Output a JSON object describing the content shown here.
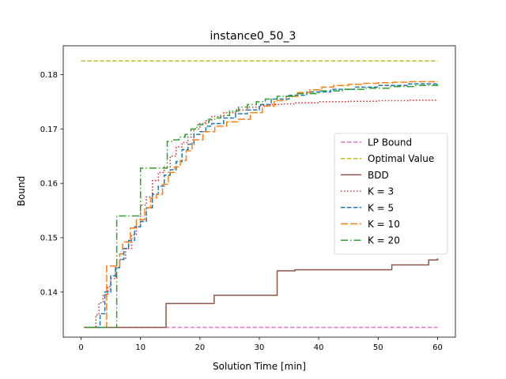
{
  "chart_data": {
    "type": "line",
    "title": "instance0_50_3",
    "xlabel": "Solution Time [min]",
    "ylabel": "Bound",
    "xlim": [
      -3,
      63
    ],
    "ylim": [
      0.1317,
      0.1853
    ],
    "xticks": [
      0,
      10,
      20,
      30,
      40,
      50,
      60
    ],
    "yticks": [
      0.14,
      0.15,
      0.16,
      0.17,
      0.18
    ],
    "xtick_labels": [
      "0",
      "10",
      "20",
      "30",
      "40",
      "50",
      "60"
    ],
    "ytick_labels": [
      "0.14",
      "0.15",
      "0.16",
      "0.17",
      "0.18"
    ],
    "grid": false,
    "legend_position": "center-right",
    "series": [
      {
        "name": "LP Bound",
        "color": "#e377c2",
        "dash": "dashed",
        "step": false,
        "x": [
          0.5,
          60
        ],
        "y": [
          0.1335,
          0.1335
        ]
      },
      {
        "name": "Optimal Value",
        "color": "#bcbd22",
        "dash": "dashed",
        "step": false,
        "x": [
          0,
          60
        ],
        "y": [
          0.1825,
          0.1825
        ]
      },
      {
        "name": "BDD",
        "color": "#8c564b",
        "dash": "solid",
        "step": true,
        "x": [
          0.5,
          14.3,
          22.4,
          33.0,
          36.0,
          52.3,
          58.5,
          60
        ],
        "y": [
          0.1335,
          0.1379,
          0.1394,
          0.1439,
          0.1441,
          0.145,
          0.1459,
          0.1462
        ]
      },
      {
        "name": "K = 3",
        "color": "#d62728",
        "dash": "dotted",
        "step": true,
        "x": [
          1.5,
          2.5,
          3.0,
          3.7,
          4.5,
          5.0,
          5.8,
          6.5,
          7.5,
          8.5,
          9.3,
          10.0,
          11.0,
          12.0,
          13.0,
          14.0,
          15.0,
          16.0,
          17.0,
          18.0,
          19.0,
          20.0,
          21.0,
          22.0,
          24.0,
          26.0,
          28.0,
          30.0,
          32.0,
          34.0,
          36.0,
          40.0,
          45.0,
          50.0,
          55.0,
          60.0
        ],
        "y": [
          0.1335,
          0.1358,
          0.138,
          0.1395,
          0.141,
          0.1425,
          0.1445,
          0.146,
          0.148,
          0.1505,
          0.152,
          0.156,
          0.1575,
          0.1605,
          0.162,
          0.163,
          0.165,
          0.1667,
          0.1675,
          0.1685,
          0.17,
          0.171,
          0.1715,
          0.1723,
          0.173,
          0.1735,
          0.174,
          0.1743,
          0.1745,
          0.1746,
          0.1748,
          0.175,
          0.1751,
          0.1752,
          0.1753,
          0.1753
        ]
      },
      {
        "name": "K = 5",
        "color": "#1f77b4",
        "dash": "dashed",
        "step": true,
        "x": [
          2.5,
          3.2,
          4.0,
          5.0,
          5.8,
          6.5,
          7.2,
          8.0,
          9.0,
          10.0,
          11.0,
          12.0,
          13.0,
          14.0,
          15.0,
          16.0,
          17.0,
          18.0,
          19.0,
          20.0,
          21.0,
          22.0,
          24.0,
          26.0,
          28.0,
          30.0,
          32.0,
          35.0,
          38.0,
          42.0,
          46.0,
          50.0,
          55.0,
          60.0
        ],
        "y": [
          0.1335,
          0.136,
          0.14,
          0.143,
          0.1445,
          0.146,
          0.148,
          0.1495,
          0.152,
          0.153,
          0.1555,
          0.158,
          0.1595,
          0.1615,
          0.1625,
          0.164,
          0.1662,
          0.1672,
          0.169,
          0.1695,
          0.1705,
          0.171,
          0.172,
          0.1728,
          0.1735,
          0.1745,
          0.1755,
          0.1762,
          0.1768,
          0.1773,
          0.1777,
          0.178,
          0.1783,
          0.1785
        ]
      },
      {
        "name": "K = 10",
        "color": "#ff7f0e",
        "dash": "dashdash",
        "step": true,
        "x": [
          4.0,
          4.3,
          6.5,
          7.0,
          8.3,
          9.3,
          10.7,
          11.7,
          12.7,
          13.7,
          14.7,
          15.7,
          16.7,
          17.7,
          18.7,
          20.5,
          22.5,
          24.5,
          26.5,
          28.5,
          30.5,
          32.5,
          34.5,
          36.5,
          38.5,
          40.5,
          42.5,
          45.0,
          47.5,
          50.0,
          52.5,
          55.0,
          60.0
        ],
        "y": [
          0.1335,
          0.1448,
          0.147,
          0.1492,
          0.1518,
          0.1533,
          0.1555,
          0.1573,
          0.158,
          0.1598,
          0.162,
          0.163,
          0.1642,
          0.166,
          0.168,
          0.1695,
          0.1705,
          0.1713,
          0.1718,
          0.173,
          0.1742,
          0.1752,
          0.176,
          0.1767,
          0.1772,
          0.1777,
          0.178,
          0.1782,
          0.1784,
          0.1785,
          0.1786,
          0.1787,
          0.1788
        ]
      },
      {
        "name": "K = 20",
        "color": "#2ca02c",
        "dash": "dashdot",
        "step": true,
        "x": [
          1.0,
          6.0,
          10.0,
          14.5,
          15.5,
          16.5,
          17.5,
          18.5,
          19.5,
          20.5,
          21.5,
          22.5,
          23.5,
          25.0,
          26.5,
          28.0,
          29.5,
          31.0,
          33.0,
          36.0,
          40.0,
          44.0,
          48.0,
          52.0,
          56.0,
          60.0
        ],
        "y": [
          0.1335,
          0.154,
          0.1628,
          0.1677,
          0.168,
          0.1685,
          0.169,
          0.17,
          0.1708,
          0.1712,
          0.1718,
          0.172,
          0.1725,
          0.1733,
          0.174,
          0.1745,
          0.175,
          0.1755,
          0.176,
          0.1765,
          0.177,
          0.1773,
          0.1775,
          0.1778,
          0.178,
          0.1782
        ]
      }
    ]
  }
}
